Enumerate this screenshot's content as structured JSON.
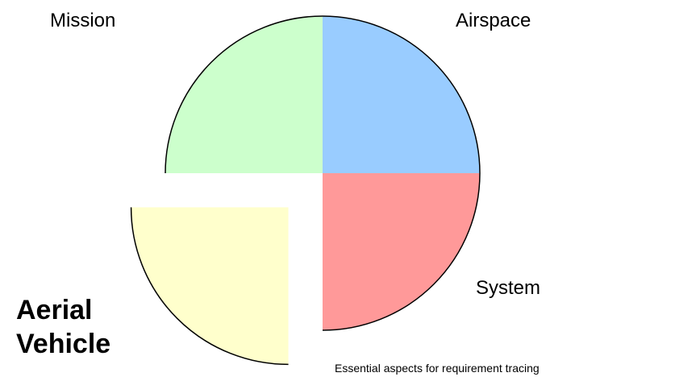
{
  "chart_data": {
    "type": "pie",
    "categories": [
      "Airspace",
      "System",
      "Aerial Vehicle",
      "Mission"
    ],
    "values": [
      25,
      25,
      25,
      25
    ],
    "colors": [
      "#99ccff",
      "#ff9999",
      "#ffffcc",
      "#ccffcc"
    ],
    "explode": [
      false,
      false,
      true,
      false
    ],
    "annotation": "Essential aspects for requirement tracing"
  }
}
